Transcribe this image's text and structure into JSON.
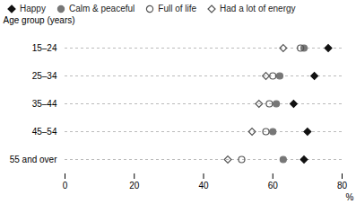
{
  "chart_data": {
    "type": "scatter",
    "categories": [
      "15–24",
      "25–34",
      "35–44",
      "45–54",
      "55 and over"
    ],
    "series": [
      {
        "name": "Happy",
        "color": "#111111",
        "marker": "diamond",
        "values": [
          76,
          72,
          66,
          70,
          69
        ]
      },
      {
        "name": "Calm & peaceful",
        "color": "#777777",
        "marker": "circle",
        "values": [
          69,
          62,
          61,
          60,
          63
        ]
      },
      {
        "name": "Full of life",
        "color": "#555555",
        "marker": "circle-open",
        "values": [
          68,
          60,
          59,
          58,
          51
        ]
      },
      {
        "name": "Had a lot of energy",
        "color": "#555555",
        "marker": "diamond-open",
        "values": [
          63,
          58,
          56,
          54,
          47
        ]
      }
    ],
    "xlabel": "%",
    "ylabel": "Age group (years)",
    "xlim": [
      0,
      80
    ],
    "xticks": [
      0,
      20,
      40,
      60,
      80
    ],
    "grid": true,
    "legend": "top"
  }
}
